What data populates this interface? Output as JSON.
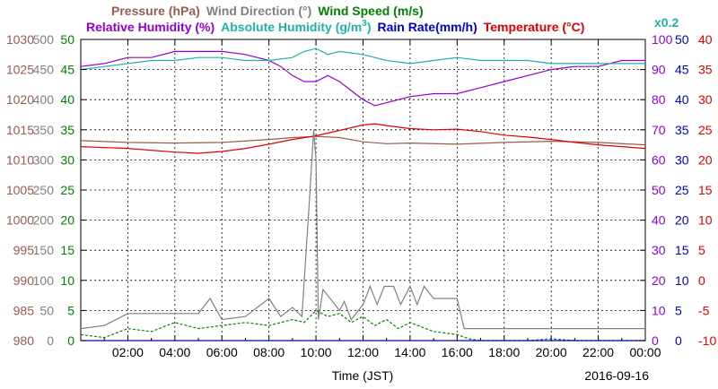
{
  "chart_data": {
    "type": "line",
    "date": "2016-09-16",
    "xlabel": "Time (JST)",
    "x_ticks": [
      "02:00",
      "04:00",
      "06:00",
      "08:00",
      "10:00",
      "12:00",
      "14:00",
      "16:00",
      "18:00",
      "20:00",
      "22:00",
      "00:00"
    ],
    "grid": true,
    "legend_row1": [
      {
        "label": "Pressure (hPa)",
        "color": "#9a5a4e"
      },
      {
        "label": "Wind Direction (°)",
        "color": "#808080"
      },
      {
        "label": "Wind Speed (m/s)",
        "color": "#008000"
      }
    ],
    "legend_row2": [
      {
        "label": "Relative Humidity (%)",
        "color": "#9400d3"
      },
      {
        "label": "Absolute Humidity (g/m",
        "sup": "3",
        "close": ")",
        "color": "#20b2aa"
      },
      {
        "label": "Rain Rate(mm/h)",
        "color": "#0000cd"
      },
      {
        "label": "Temperature (°C)",
        "color": "#e00000"
      }
    ],
    "axis_note": "x0.2",
    "axis_note_color": "#20b2aa",
    "axes": {
      "pressure": {
        "color": "#9a5a4e",
        "min": 980,
        "max": 1030,
        "ticks": [
          "980",
          "985",
          "990",
          "995",
          "1000",
          "1005",
          "1010",
          "1015",
          "1020",
          "1025",
          "1030"
        ]
      },
      "wind_direction": {
        "color": "#808080",
        "min": 0,
        "max": 500,
        "ticks": [
          "0",
          "50",
          "100",
          "150",
          "200",
          "250",
          "300",
          "350",
          "400",
          "450",
          "500"
        ]
      },
      "wind_speed": {
        "color": "#008000",
        "min": 0,
        "max": 50,
        "ticks": [
          "0",
          "5",
          "10",
          "15",
          "20",
          "25",
          "30",
          "35",
          "40",
          "45",
          "50"
        ]
      },
      "relative_humidity": {
        "color": "#9400d3",
        "min": 0,
        "max": 100,
        "ticks": [
          "0",
          "10",
          "20",
          "30",
          "40",
          "50",
          "60",
          "70",
          "80",
          "90",
          "100"
        ]
      },
      "rain_rate": {
        "color": "#0000cd",
        "min": 0,
        "max": 50,
        "ticks": [
          "0",
          "5",
          "10",
          "15",
          "20",
          "25",
          "30",
          "35",
          "40",
          "45",
          "50"
        ]
      },
      "temperature": {
        "color": "#e00000",
        "min": -10,
        "max": 40,
        "ticks": [
          "-10",
          "-5",
          "0",
          "5",
          "10",
          "15",
          "20",
          "25",
          "30",
          "35",
          "40"
        ]
      }
    },
    "series": [
      {
        "name": "Pressure (hPa)",
        "color": "#9a5a4e",
        "axis": "pressure",
        "x": [
          0,
          2,
          4,
          6,
          8,
          9,
          10,
          11,
          12,
          13,
          14,
          16,
          18,
          20,
          22,
          24
        ],
        "y": [
          1013.2,
          1012.9,
          1012.8,
          1012.9,
          1013.4,
          1013.7,
          1013.9,
          1013.7,
          1013.0,
          1012.7,
          1012.8,
          1012.6,
          1012.9,
          1013.1,
          1012.9,
          1012.5
        ]
      },
      {
        "name": "Temperature (°C)",
        "color": "#e00000",
        "axis": "temperature",
        "x": [
          0,
          2,
          4,
          5,
          6,
          7,
          8,
          9,
          10,
          11,
          12,
          12.5,
          13,
          14,
          15,
          16,
          17,
          18,
          19,
          20,
          21,
          22,
          23,
          24
        ],
        "y": [
          22.2,
          21.9,
          21.3,
          21.1,
          21.4,
          21.9,
          22.6,
          23.4,
          24.0,
          24.9,
          25.8,
          26.0,
          25.7,
          25.2,
          25.0,
          25.1,
          24.7,
          24.1,
          23.8,
          23.4,
          22.9,
          22.5,
          22.2,
          21.9
        ]
      },
      {
        "name": "Relative Humidity (%)",
        "color": "#9400d3",
        "axis": "relative_humidity",
        "x": [
          0,
          1,
          2,
          3,
          4,
          5,
          6,
          7,
          8,
          8.5,
          9,
          9.5,
          10,
          10.5,
          11,
          11.5,
          12,
          12.5,
          13,
          14,
          15,
          16,
          17,
          18,
          19,
          20,
          21,
          22,
          23,
          24
        ],
        "y": [
          91,
          92,
          94,
          94,
          96,
          96,
          96,
          95,
          93,
          91,
          88,
          86,
          86,
          88,
          86,
          83,
          80,
          78,
          79,
          81,
          82,
          82,
          84,
          86,
          88,
          90,
          91,
          91,
          93,
          93
        ]
      },
      {
        "name": "Absolute Humidity (g/m3)",
        "color": "#20b2aa",
        "axis": "relative_humidity",
        "x": [
          0,
          1,
          2,
          3,
          4,
          5,
          6,
          7,
          8,
          9,
          9.5,
          10,
          10.5,
          11,
          12,
          13,
          14,
          15,
          16,
          17,
          18,
          19,
          20,
          21,
          22,
          23,
          24
        ],
        "y": [
          90,
          91,
          92,
          93,
          93,
          94,
          94,
          93,
          93,
          94,
          96,
          97,
          95,
          96,
          95,
          93,
          92,
          93,
          94,
          93,
          93,
          93,
          92,
          92,
          92,
          92,
          92
        ]
      },
      {
        "name": "Wind Direction (°)",
        "color": "#808080",
        "axis": "wind_direction",
        "x": [
          0,
          1,
          2,
          3,
          4,
          5,
          5.5,
          6,
          7,
          8,
          8.5,
          9,
          9.4,
          9.7,
          9.9,
          10.0,
          10.1,
          10.3,
          11,
          11.2,
          11.5,
          12,
          12.3,
          12.6,
          12.9,
          13.3,
          13.6,
          14,
          14.3,
          14.6,
          15,
          16,
          16.3,
          17,
          18,
          19,
          20,
          21,
          22,
          23,
          24
        ],
        "y": [
          20,
          25,
          45,
          45,
          45,
          45,
          70,
          35,
          40,
          70,
          40,
          55,
          40,
          220,
          350,
          300,
          35,
          85,
          50,
          65,
          35,
          60,
          90,
          60,
          90,
          90,
          60,
          90,
          60,
          90,
          70,
          70,
          20,
          20,
          20,
          20,
          20,
          20,
          20,
          20,
          20
        ]
      },
      {
        "name": "Wind Speed (m/s)",
        "color": "#008000",
        "axis": "wind_speed",
        "x": [
          0,
          1,
          2,
          3,
          4,
          5,
          6,
          7,
          8,
          9,
          9.5,
          10,
          10.5,
          11,
          11.5,
          12,
          12.5,
          13,
          13.5,
          14,
          15,
          16,
          16.5,
          17,
          18,
          19,
          20,
          21,
          22,
          23,
          24
        ],
        "y": [
          1.0,
          0.5,
          2.0,
          1.5,
          3.0,
          2.0,
          2.5,
          3.0,
          2.5,
          3.5,
          3.0,
          5.0,
          4.0,
          4.5,
          3.0,
          4.0,
          2.5,
          3.5,
          2.0,
          3.0,
          1.5,
          1.0,
          0.3,
          0,
          0,
          0,
          0.3,
          0,
          0,
          0,
          0
        ]
      },
      {
        "name": "Rain Rate(mm/h)",
        "color": "#0000cd",
        "axis": "rain_rate",
        "x": [
          0,
          24
        ],
        "y": [
          0,
          0
        ]
      }
    ]
  }
}
